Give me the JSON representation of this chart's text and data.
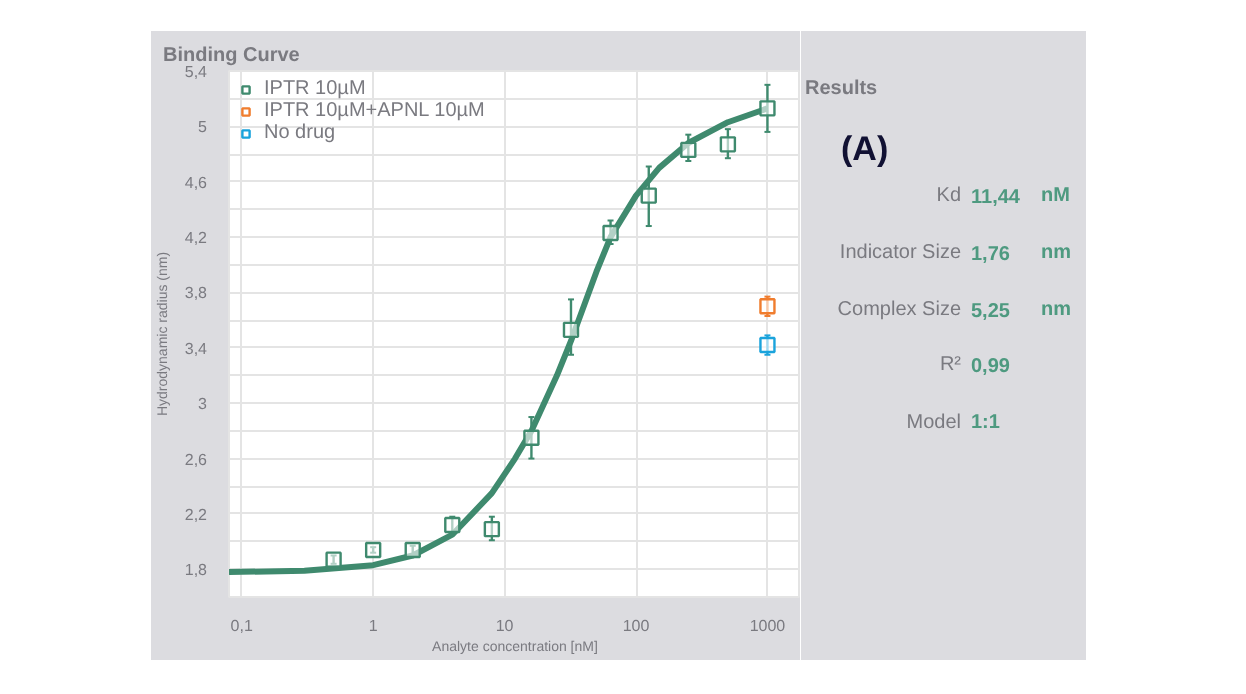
{
  "chart_data": {
    "type": "scatter",
    "title": "Binding Curve",
    "xlabel": "Analyte concentration [nM]",
    "ylabel": "Hydrodynamic radius (nm)",
    "log": "x",
    "grid": true,
    "legend": "top left",
    "xlim": [
      0.08,
      1800
    ],
    "ylim": [
      1.6,
      5.4
    ],
    "xticks": [
      {
        "value": 0.1,
        "label": "0,1"
      },
      1,
      10,
      100,
      1000
    ],
    "yticks": [
      {
        "value": 1.8,
        "label": "1,8"
      },
      {
        "value": 2.0,
        "label": null
      },
      {
        "value": 2.2,
        "label": "2,2"
      },
      {
        "value": 2.4,
        "label": null
      },
      {
        "value": 2.6,
        "label": "2,6"
      },
      {
        "value": 2.8,
        "label": null
      },
      {
        "value": 3,
        "label": "3"
      },
      {
        "value": 3.2,
        "label": null
      },
      {
        "value": 3.4,
        "label": "3,4"
      },
      {
        "value": 3.6,
        "label": null
      },
      {
        "value": 3.8,
        "label": "3,8"
      },
      {
        "value": 4.0,
        "label": null
      },
      {
        "value": 4.2,
        "label": "4,2"
      },
      {
        "value": 4.4,
        "label": null
      },
      {
        "value": 4.6,
        "label": "4,6"
      },
      {
        "value": 4.8,
        "label": null
      },
      {
        "value": 5,
        "label": "5"
      },
      {
        "value": 5.2,
        "label": null
      },
      {
        "value": 5.4,
        "label": "5,4"
      }
    ],
    "series": [
      {
        "name": "IPTR 10µM",
        "color": "#3f8a6e",
        "marker": "square",
        "x": [
          0.5,
          1,
          2,
          4,
          8,
          16,
          32,
          64,
          125,
          250,
          500,
          1000
        ],
        "values": [
          1.87,
          1.94,
          1.94,
          2.12,
          2.09,
          2.75,
          3.53,
          4.23,
          4.5,
          4.83,
          4.87,
          5.13
        ],
        "errors": [
          [
            1.84,
            1.9
          ],
          [
            1.92,
            1.96
          ],
          [
            1.91,
            1.97
          ],
          [
            2.06,
            2.18
          ],
          [
            2.01,
            2.18
          ],
          [
            2.6,
            2.9
          ],
          [
            3.35,
            3.75
          ],
          [
            4.15,
            4.32
          ],
          [
            4.28,
            4.71
          ],
          [
            4.75,
            4.94
          ],
          [
            4.77,
            4.98
          ],
          [
            4.96,
            5.3
          ]
        ]
      },
      {
        "name": "IPTR 10µM+APNL 10µM",
        "color": "#f07d2e",
        "marker": "square",
        "x": [
          1000
        ],
        "values": [
          3.7
        ],
        "errors": [
          [
            3.63,
            3.77
          ]
        ]
      },
      {
        "name": "No drug",
        "color": "#1aa3dc",
        "marker": "square",
        "x": [
          1000
        ],
        "values": [
          3.42
        ],
        "errors": [
          [
            3.35,
            3.49
          ]
        ]
      },
      {
        "type": "line",
        "color": "#3f8a6e",
        "x": [
          0.08,
          0.3,
          1,
          2,
          4,
          8,
          12,
          16,
          25,
          32,
          50,
          64,
          100,
          150,
          250,
          500,
          1000
        ],
        "values": [
          1.78,
          1.79,
          1.83,
          1.9,
          2.05,
          2.35,
          2.6,
          2.8,
          3.2,
          3.45,
          3.95,
          4.2,
          4.5,
          4.7,
          4.88,
          5.03,
          5.13
        ]
      }
    ],
    "annotations": [
      "Results",
      "(A)",
      "Kd 11,44 nM",
      "Indicator Size 1,76 nm",
      "Complex Size 5,25 nm",
      "R² 0,99",
      "Model 1:1"
    ]
  }
}
